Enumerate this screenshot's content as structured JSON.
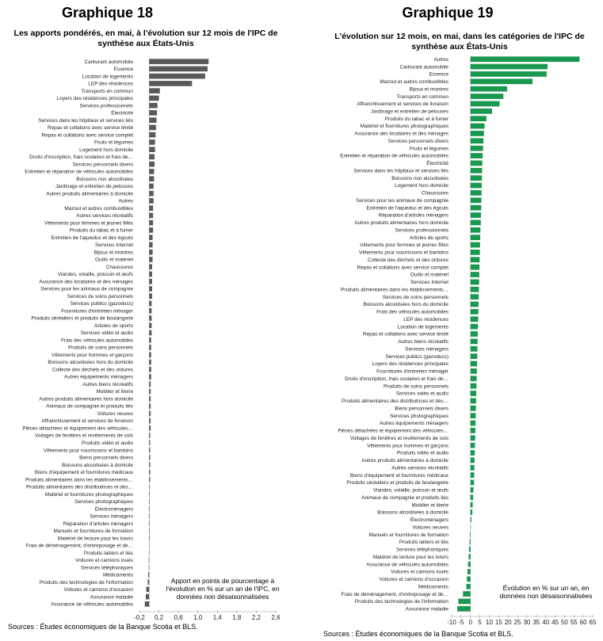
{
  "charts": [
    {
      "heading": "Graphique 18",
      "title": "Les apports pondérés, en mai, à l'évolution sur 12 mois de l'IPC de synthèse aux États-Unis",
      "note": "Apport en points de pourcentage à l'évolution en % sur un an de l'IPC, en données non désaisonnalisées",
      "source": "Sources : Études économiques de la Banque Scotia et BLS.",
      "bar_color": "#595959"
    },
    {
      "heading": "Graphique 19",
      "title": "L'évolution sur 12 mois, en mai, dans les catégories de l'IPC de synthèse aux États-Unis",
      "note": "Évolution en % sur un an, en données non désaisonnalisées",
      "source": "Sources : Études économiques de la Banque Scotia et BLS.",
      "bar_color": "#1a9850"
    }
  ],
  "chart_data": [
    {
      "type": "bar",
      "orientation": "horizontal",
      "xlim": [
        -0.2,
        2.6
      ],
      "xticks": [
        "-0,2",
        "0,2",
        "0,6",
        "1,0",
        "1,4",
        "1,8",
        "2,2",
        "2,6"
      ],
      "xtick_values": [
        -0.2,
        0.2,
        0.6,
        1.0,
        1.4,
        1.8,
        2.2,
        2.6
      ],
      "categories": [
        "Carburant automobile",
        "Essence",
        "Location de logements",
        "LEP des résidences",
        "Transports en commun",
        "Loyers des résidences principales",
        "Services professionnels",
        "Électricité",
        "Services dans les hôpitaux et services liés",
        "Repas et collations avec service limité",
        "Repas et collations avec service complet",
        "Fruits et légumes",
        "Logement hors domicile",
        "Droits d'inscription, frais scolaires et frais de…",
        "Services personnels divers",
        "Entretien et réparation de véhicules automobiles",
        "Boissons non alcoolisées",
        "Jardinage et entretien de pelouses",
        "Autres produits alimentaires à domicile",
        "Autres",
        "Mazout et autres combustibles",
        "Autres services récréatifs",
        "Vêtements pour femmes et jeunes filles",
        "Produits du tabac et à fumer",
        "Entretien de l'aqueduc et des égouts",
        "Services Internet",
        "Bijoux et montres",
        "Outils et matériel",
        "Chaussures",
        "Viandes, volaille, poisson et œufs",
        "Assurance des locataires et des ménages",
        "Services pour les animaux de compagnie",
        "Services de soins personnels",
        "Services publics (gazoducs)",
        "Fournitures d'entretien ménager",
        "Produits céréaliers et produits de boulangerie",
        "Articles de sports",
        "Services vidéo et audio",
        "Frais des véhicules automobiles",
        "Produits de soins personnels",
        "Vêtements pour hommes et garçons",
        "Boissons alcoolisées hors du domicile",
        "Collecte des déchets et des ordures",
        "Autres équipements ménagers",
        "Autres biens récréatifs",
        "Mobilier et literie",
        "Autres produits alimentaires hors domicile",
        "Animaux de compagnie et produits liés",
        "Voitures neuves",
        "Affranchissement et services de livraison",
        "Pièces détachées et équipement des véhicules…",
        "Voilages de fenêtres et revêtements de sols",
        "Produits vidéo et audio",
        "Vêtements pour nourrissons et bambins",
        "Biens personnels divers",
        "Boissons alcoolisées à domicile",
        "Biens d'équipement et fournitures médicaux",
        "Produits alimentaires dans les établissements…",
        "Produits alimentaires des distributrices et des…",
        "Matériel et fournitures photographiques",
        "Services photographiques",
        "Électroménagers",
        "Services ménagers",
        "Réparation d'articles ménagers",
        "Manuels et fournitures de formation",
        "Matériel de lecture pour les loisirs",
        "Frais de déménagement, d'entreposage et de…",
        "Produits laitiers et liés",
        "Voitures et camions loués",
        "Services téléphoniques",
        "Médicaments",
        "Produits des technologies de l'information",
        "Voitures et camions d'occasion",
        "Assurance maladie",
        "Assurance de véhicules automobiles"
      ],
      "values": [
        1.22,
        1.2,
        1.15,
        0.88,
        0.22,
        0.2,
        0.17,
        0.16,
        0.15,
        0.14,
        0.13,
        0.12,
        0.12,
        0.11,
        0.11,
        0.1,
        0.1,
        0.09,
        0.09,
        0.09,
        0.08,
        0.08,
        0.08,
        0.08,
        0.07,
        0.07,
        0.07,
        0.07,
        0.06,
        0.06,
        0.06,
        0.06,
        0.06,
        0.05,
        0.05,
        0.05,
        0.05,
        0.05,
        0.04,
        0.04,
        0.04,
        0.04,
        0.04,
        0.04,
        0.03,
        0.03,
        0.03,
        0.03,
        0.03,
        0.03,
        0.03,
        0.02,
        0.02,
        0.02,
        0.02,
        0.02,
        0.02,
        0.02,
        0.01,
        0.01,
        0.01,
        0.01,
        0.01,
        0.01,
        0.01,
        0.01,
        0.0,
        0.0,
        -0.01,
        -0.01,
        -0.02,
        -0.03,
        -0.06,
        -0.07,
        -0.09
      ]
    },
    {
      "type": "bar",
      "orientation": "horizontal",
      "xlim": [
        -10,
        65
      ],
      "xticks": [
        "-10",
        "-5",
        "0",
        "5",
        "10",
        "15",
        "20",
        "25",
        "30",
        "35",
        "40",
        "45",
        "50",
        "55",
        "60",
        "65"
      ],
      "xtick_values": [
        -10,
        -5,
        0,
        5,
        10,
        15,
        20,
        25,
        30,
        35,
        40,
        45,
        50,
        55,
        60,
        65
      ],
      "categories": [
        "Autres",
        "Carburant automobile",
        "Essence",
        "Mazout et autres combustibles",
        "Bijoux et montres",
        "Transports en commun",
        "Affranchissement et services de livraison",
        "Jardinage et entretien de pelouses",
        "Produits du tabac et à fumer",
        "Matériel et fournitures photographiques",
        "Assurance des locataires et des ménages",
        "Services personnels divers",
        "Fruits et légumes",
        "Entretien et réparation de véhicules automobiles",
        "Électricité",
        "Services dans les hôpitaux et services liés",
        "Boissons non alcoolisées",
        "Logement hors domicile",
        "Chaussures",
        "Services pour les animaux de compagnie",
        "Entretien de l'aqueduc et des égouts",
        "Réparation d'articles ménagers",
        "Autres produits alimentaires hors domicile",
        "Services professionnels",
        "Articles de sports",
        "Vêtements pour femmes et jeunes filles",
        "Vêtements pour nourrissons et bambins",
        "Collecte des déchets et des ordures",
        "Repas et collations avec service complet",
        "Outils et matériel",
        "Services Internet",
        "Produits alimentaires dans les établissements…",
        "Services de soins personnels",
        "Boissons alcoolisées hors du domicile",
        "Frais des véhicules automobiles",
        "LEP des résidences",
        "Location de logements",
        "Repas et collations avec service limité",
        "Autres biens récréatifs",
        "Services ménagers",
        "Services publics (gazoducs)",
        "Loyers des résidences principales",
        "Fournitures d'entretien ménager",
        "Droits d'inscription, frais scolaires et frais de…",
        "Produits de soins personnels",
        "Services vidéo et audio",
        "Produits alimentaires des distributrices et des…",
        "Biens personnels divers",
        "Services photographiques",
        "Autres équipements ménagers",
        "Pièces détachées et équipement des véhicules…",
        "Voilages de fenêtres et revêtements de sols",
        "Vêtements pour hommes et garçons",
        "Produits vidéo et audio",
        "Autres produits alimentaires à domicile",
        "Autres services récréatifs",
        "Biens d'équipement et fournitures médicaux",
        "Produits céréaliers et produits de boulangerie",
        "Viandes, volaille, poisson et œufs",
        "Animaux de compagnie et produits liés",
        "Mobilier et literie",
        "Boissons alcoolisées à domicile",
        "Électroménagers",
        "Voitures neuves",
        "Manuels et fournitures de formation",
        "Produits laitiers et liés",
        "Services téléphoniques",
        "Matériel de lecture pour les loisirs",
        "Assurance de véhicules automobiles",
        "Voitures et camions loués",
        "Voitures et camions d'occasion",
        "Médicaments",
        "Frais de déménagement, d'entreposage et de…",
        "Produits des technologies de l'information",
        "Assurance maladie"
      ],
      "values": [
        58,
        41,
        40.5,
        33,
        19.5,
        17.5,
        15.5,
        11.5,
        8.5,
        7.5,
        7.2,
        6.9,
        6.7,
        6.5,
        6.3,
        6.2,
        6.1,
        6.0,
        5.9,
        5.8,
        5.7,
        5.6,
        5.5,
        5.3,
        5.2,
        5.1,
        5.0,
        4.9,
        4.8,
        4.7,
        4.6,
        4.5,
        4.4,
        4.3,
        4.2,
        4.1,
        4.0,
        3.9,
        3.8,
        3.7,
        3.6,
        3.5,
        3.4,
        3.3,
        3.2,
        3.1,
        3.0,
        2.9,
        2.8,
        2.7,
        2.6,
        2.5,
        2.4,
        2.3,
        2.2,
        2.1,
        2.0,
        1.9,
        1.6,
        1.4,
        1.2,
        1.0,
        0.5,
        0.2,
        -0.3,
        -0.5,
        -0.8,
        -1.0,
        -1.3,
        -1.6,
        -1.9,
        -2.2,
        -4.0,
        -6.5,
        -7.0
      ]
    }
  ]
}
